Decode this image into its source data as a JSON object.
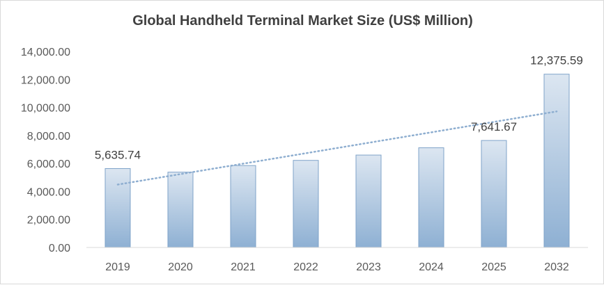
{
  "chart_data": {
    "type": "bar",
    "title": "Global Handheld Terminal Market Size (US$ Million)",
    "categories": [
      "2019",
      "2020",
      "2021",
      "2022",
      "2023",
      "2024",
      "2025",
      "2032"
    ],
    "values": [
      5635.74,
      5380,
      5850,
      6220,
      6600,
      7120,
      7641.67,
      12375.59
    ],
    "data_labels": [
      "5,635.74",
      "",
      "",
      "",
      "",
      "",
      "7,641.67",
      "12,375.59"
    ],
    "yticks": [
      "0.00",
      "2,000.00",
      "4,000.00",
      "6,000.00",
      "8,000.00",
      "10,000.00",
      "12,000.00",
      "14,000.00"
    ],
    "ylim": [
      0,
      14000
    ],
    "trendline": "linear, dotted",
    "grid": false,
    "legend": "none",
    "colors": {
      "bar_top": "#dce6f1",
      "bar_bottom": "#8eb0d3",
      "bar_border": "#7fa3c9",
      "trendline": "#8eaed0"
    }
  }
}
